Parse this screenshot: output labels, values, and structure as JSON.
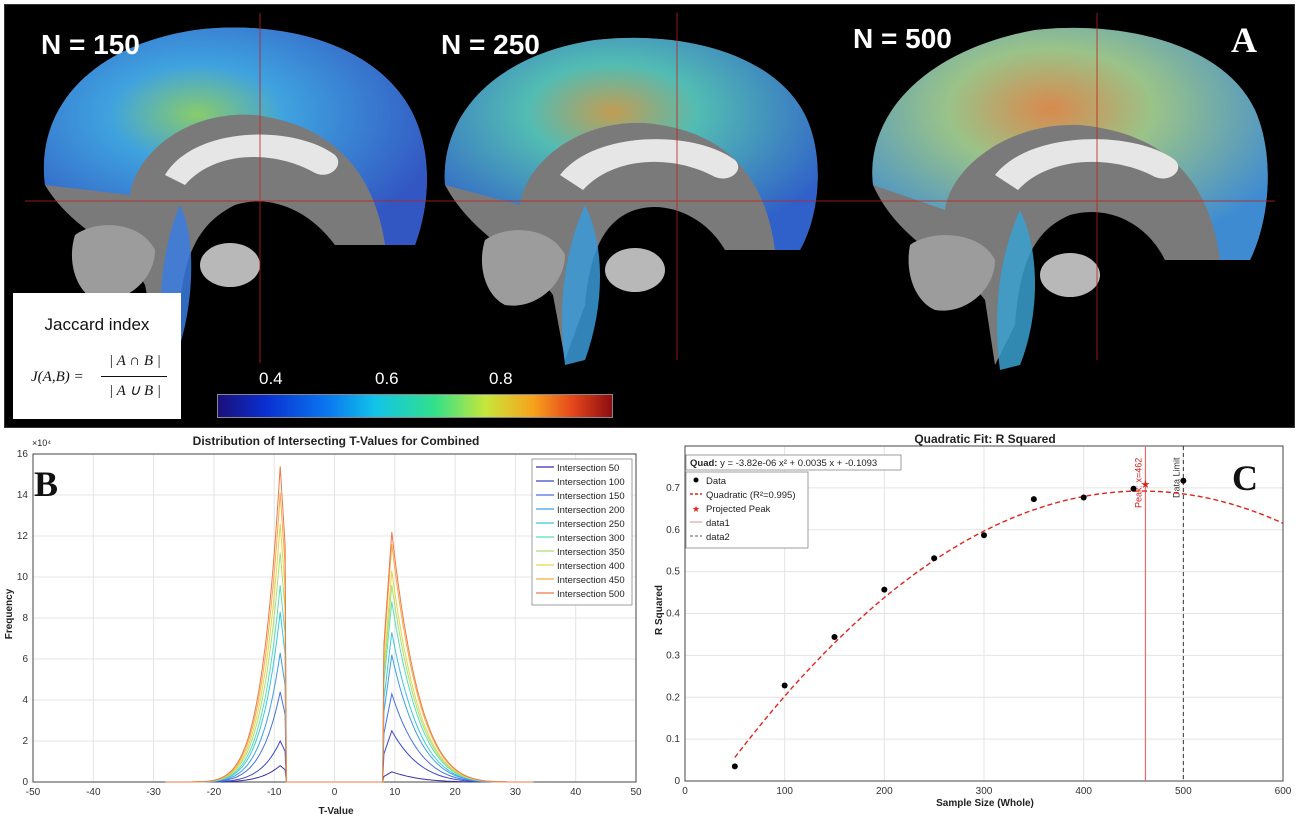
{
  "panel_a": {
    "letter": "A",
    "brains": [
      {
        "label": "N = 150"
      },
      {
        "label": "N = 250"
      },
      {
        "label": "N = 500"
      }
    ],
    "jaccard": {
      "title": "Jaccard index",
      "lhs": "J(A,B) =",
      "numerator": "| A ∩ B |",
      "denominator": "| A ∪ B |"
    },
    "colorbar": {
      "ticks": [
        "0.4",
        "0.6",
        "0.8"
      ],
      "colors": [
        "#1a0f7a",
        "#0a2fd0",
        "#0a78f0",
        "#12c4e8",
        "#32e08a",
        "#c8e63a",
        "#f7a21c",
        "#e5461c",
        "#8c0d10"
      ]
    }
  },
  "chart_data": [
    {
      "type": "line",
      "panel_letter": "B",
      "title": "Distribution of Intersecting T-Values for Combined",
      "xlabel": "T-Value",
      "ylabel": "Frequency",
      "y_exponent": "×10⁴",
      "xlim": [
        -50,
        50
      ],
      "ylim": [
        0,
        16
      ],
      "xticks": [
        -50,
        -40,
        -30,
        -20,
        -10,
        0,
        10,
        20,
        30,
        40,
        50
      ],
      "yticks": [
        0,
        2,
        4,
        6,
        8,
        10,
        12,
        14,
        16
      ],
      "grid": true,
      "legend_position": "top-right",
      "series": [
        {
          "name": "Intersection 50",
          "color": "#3b2fa8",
          "neg_peak": 0.8,
          "pos_peak": 0.5
        },
        {
          "name": "Intersection 100",
          "color": "#3c46c8",
          "neg_peak": 2.0,
          "pos_peak": 2.5
        },
        {
          "name": "Intersection 150",
          "color": "#4670dc",
          "neg_peak": 4.4,
          "pos_peak": 4.3
        },
        {
          "name": "Intersection 200",
          "color": "#3f9ee6",
          "neg_peak": 6.3,
          "pos_peak": 6.2
        },
        {
          "name": "Intersection 250",
          "color": "#3cc6e0",
          "neg_peak": 8.3,
          "pos_peak": 7.3
        },
        {
          "name": "Intersection 300",
          "color": "#5cdcb4",
          "neg_peak": 9.6,
          "pos_peak": 8.8
        },
        {
          "name": "Intersection 350",
          "color": "#a8e070",
          "neg_peak": 11.2,
          "pos_peak": 9.6
        },
        {
          "name": "Intersection 400",
          "color": "#e6d44c",
          "neg_peak": 12.6,
          "pos_peak": 10.3
        },
        {
          "name": "Intersection 450",
          "color": "#f4ac46",
          "neg_peak": 14.1,
          "pos_peak": 11.6
        },
        {
          "name": "Intersection 500",
          "color": "#ec7a48",
          "neg_peak": 15.4,
          "pos_peak": 12.2
        }
      ],
      "curve_shape": {
        "neg_peak_t": -9,
        "neg_cutoff_t": -8,
        "pos_cutoff_t": 8,
        "pos_peak_t": 9.5,
        "tail_end_t": 33,
        "start_t": -28
      }
    },
    {
      "type": "scatter",
      "panel_letter": "C",
      "title": "Quadratic Fit: R Squared",
      "xlabel": "Sample Size (Whole)",
      "ylabel": "R Squared",
      "xlim": [
        0,
        600
      ],
      "ylim": [
        0,
        0.8
      ],
      "xticks": [
        0,
        100,
        200,
        300,
        400,
        500,
        600
      ],
      "yticks": [
        0,
        0.1,
        0.2,
        0.3,
        0.4,
        0.5,
        0.6,
        0.7
      ],
      "grid": true,
      "equation_label_bold": "Quad:",
      "equation_label": "y = -3.82e-06 x² + 0.0035 x + -0.1093",
      "fit": {
        "a": -3.82e-06,
        "b": 0.0035,
        "c": -0.1093,
        "x_start": 50,
        "x_end": 600,
        "color": "#e0241c"
      },
      "points": {
        "x": [
          50,
          100,
          150,
          200,
          250,
          300,
          350,
          400,
          450,
          500
        ],
        "y": [
          0.035,
          0.228,
          0.344,
          0.457,
          0.532,
          0.587,
          0.673,
          0.677,
          0.698,
          0.717
        ]
      },
      "projected_peak": {
        "x": 462,
        "y": 0.709
      },
      "peak_line": {
        "x": 462,
        "label": "Peak: x=462",
        "color": "#e86a6a"
      },
      "limit_line": {
        "x": 500,
        "label": "Data Limit",
        "color": "#333333"
      },
      "legend": [
        {
          "label": "Data",
          "marker": "dot"
        },
        {
          "label": "Quadratic (R²=0.995)",
          "marker": "dash-red"
        },
        {
          "label": "Projected Peak",
          "marker": "star"
        },
        {
          "label": "data1",
          "marker": "line-pink"
        },
        {
          "label": "data2",
          "marker": "dash-gray"
        }
      ]
    }
  ]
}
